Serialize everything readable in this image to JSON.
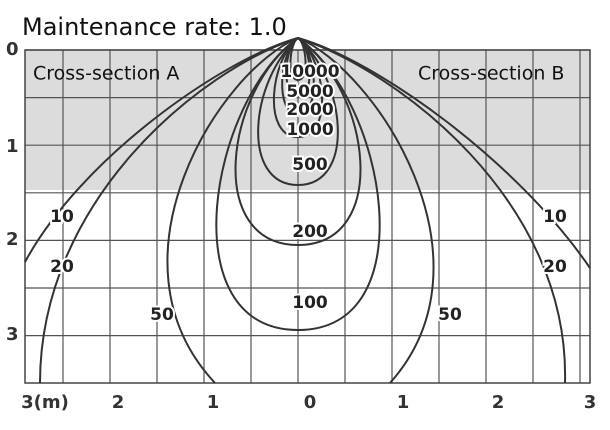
{
  "title": "Maintenance rate: 1.0",
  "sections": [
    "Cross-section A",
    "Cross-section B"
  ],
  "y_axis": {
    "labels": [
      "0",
      "1",
      "2",
      "3"
    ]
  },
  "x_axis": {
    "labels": [
      "3(m)",
      "2",
      "1",
      "0",
      "1",
      "2",
      "3"
    ]
  },
  "contours": [
    {
      "label": "10"
    },
    {
      "label": "20"
    },
    {
      "label": "50"
    },
    {
      "label": "100"
    },
    {
      "label": "200"
    },
    {
      "label": "500"
    },
    {
      "label": "1000"
    },
    {
      "label": "2000"
    },
    {
      "label": "5000"
    },
    {
      "label": "10000"
    }
  ]
}
